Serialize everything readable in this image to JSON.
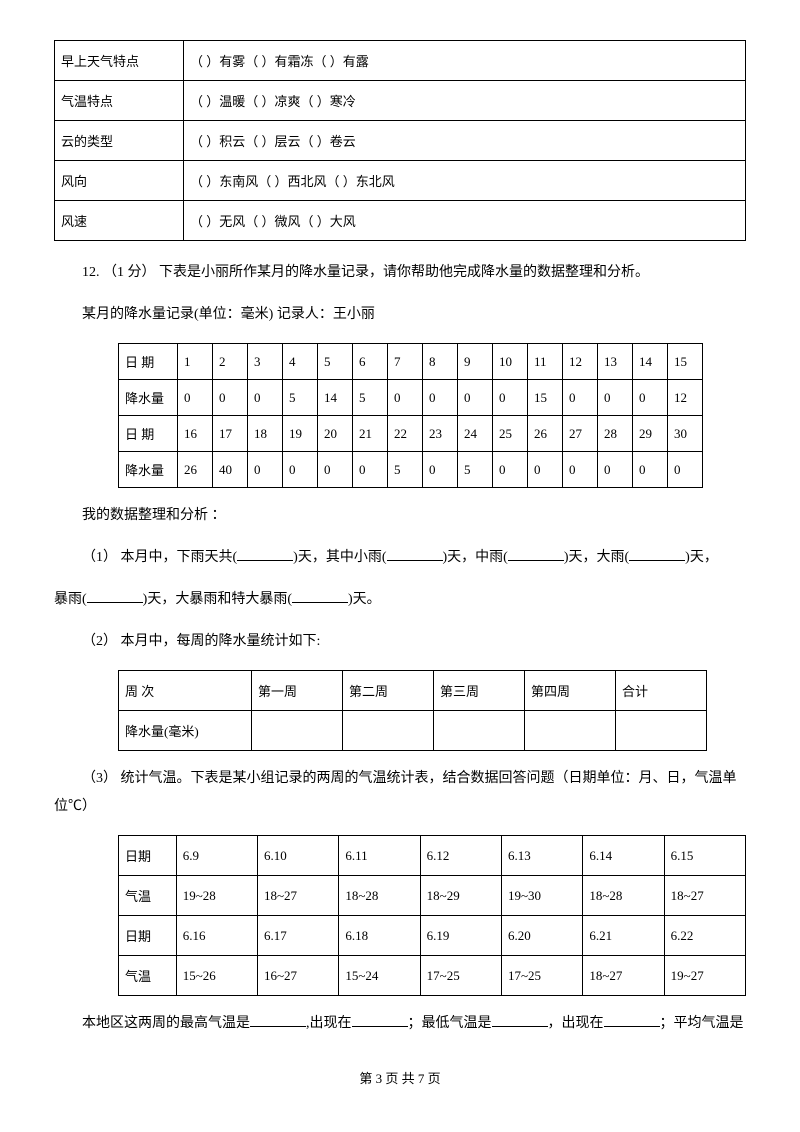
{
  "table1": {
    "rows": [
      {
        "label": "早上天气特点",
        "opt1": "有雾",
        "opt2": "有霜冻",
        "opt3": "有露"
      },
      {
        "label": "气温特点",
        "opt1": "温暖",
        "opt2": "凉爽",
        "opt3": "寒冷"
      },
      {
        "label": "云的类型",
        "opt1": "积云",
        "opt2": "层云",
        "opt3": "卷云"
      },
      {
        "label": "风向",
        "opt1": "东南风",
        "opt2": "西北风",
        "opt3": "东北风"
      },
      {
        "label": "风速",
        "opt1": "无风",
        "opt2": "微风",
        "opt3": "大风"
      }
    ]
  },
  "q12_intro": "12.  （1 分）  下表是小丽所作某月的降水量记录，请你帮助他完成降水量的数据整理和分析。",
  "q12_title": "某月的降水量记录(单位：毫米)        记录人：王小丽",
  "table2": {
    "header_date": "日    期",
    "header_rain": "降水量",
    "row1_dates": [
      "1",
      "2",
      "3",
      "4",
      "5",
      "6",
      "7",
      "8",
      "9",
      "10",
      "11",
      "12",
      "13",
      "14",
      "15"
    ],
    "row1_vals": [
      "0",
      "0",
      "0",
      "5",
      "14",
      "5",
      "0",
      "0",
      "0",
      "0",
      "15",
      "0",
      "0",
      "0",
      "12"
    ],
    "row2_dates": [
      "16",
      "17",
      "18",
      "19",
      "20",
      "21",
      "22",
      "23",
      "24",
      "25",
      "26",
      "27",
      "28",
      "29",
      "30"
    ],
    "row2_vals": [
      "26",
      "40",
      "0",
      "0",
      "0",
      "0",
      "5",
      "0",
      "5",
      "0",
      "0",
      "0",
      "0",
      "0",
      "0"
    ]
  },
  "q12_analysis_label": "我的数据整理和分析 ：",
  "q12_sub1_a": "（1）  本月中，下雨天共(",
  "q12_sub1_b": ")天，其中小雨(",
  "q12_sub1_c": ")天，中雨(",
  "q12_sub1_d": ")天，大雨(",
  "q12_sub1_e": ")天，",
  "q12_sub1_f": "暴雨(",
  "q12_sub1_g": ")天，大暴雨和特大暴雨(",
  "q12_sub1_h": ")天。",
  "q12_sub2": "（2）  本月中，每周的降水量统计如下:",
  "table3": {
    "headers": [
      "周        次",
      "第一周",
      "第二周",
      "第三周",
      "第四周",
      "合计"
    ],
    "row_label": "降水量(毫米)"
  },
  "q12_sub3": "（3）    统计气温。下表是某小组记录的两周的气温统计表，结合数据回答问题（日期单位：月、日，气温单位℃）",
  "table4": {
    "h_date": "日期",
    "h_temp": "气温",
    "row1_dates": [
      "6.9",
      "6.10",
      "6.11",
      "6.12",
      "6.13",
      "6.14",
      "6.15"
    ],
    "row1_temps": [
      "19~28",
      "18~27",
      "18~28",
      "18~29",
      "19~30",
      "18~28",
      "18~27"
    ],
    "row2_dates": [
      "6.16",
      "6.17",
      "6.18",
      "6.19",
      "6.20",
      "6.21",
      "6.22"
    ],
    "row2_temps": [
      "15~26",
      "16~27",
      "15~24",
      "17~25",
      "17~25",
      "18~27",
      "19~27"
    ]
  },
  "q12_last_a": "本地区这两周的最高气温是",
  "q12_last_b": ",出现在",
  "q12_last_c": "；最低气温是",
  "q12_last_d": "，出现在",
  "q12_last_e": "；平均气温是",
  "footer": "第 3 页 共 7 页"
}
